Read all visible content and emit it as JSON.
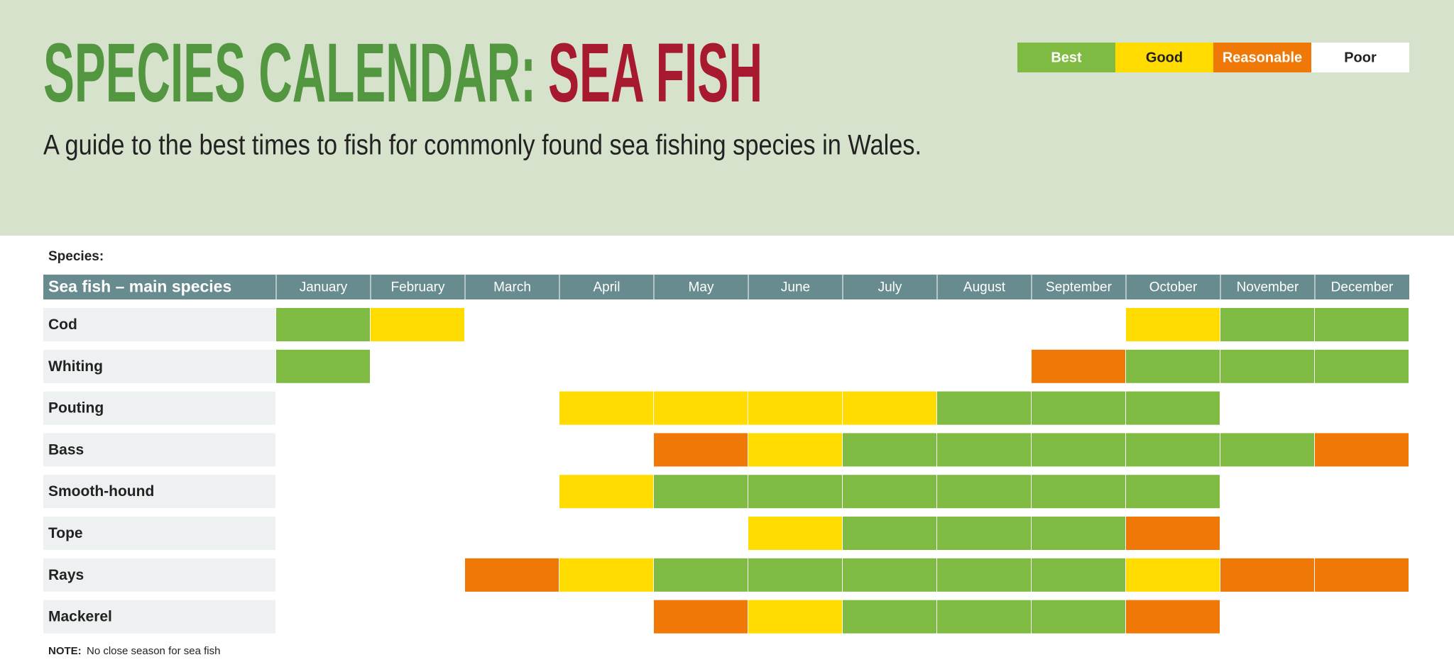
{
  "header": {
    "title_main": "SPECIES CALENDAR:",
    "title_accent": "SEA FISH",
    "subtitle": "A guide to the best times to fish for commonly found sea fishing species in Wales."
  },
  "legend": [
    {
      "label": "Best",
      "color": "#7fba42",
      "text_color": "#ffffff"
    },
    {
      "label": "Good",
      "color": "#ffdb00",
      "text_color": "#222222"
    },
    {
      "label": "Reasonable",
      "color": "#ef7806",
      "text_color": "#ffffff"
    },
    {
      "label": "Poor",
      "color": "#ffffff",
      "text_color": "#222222"
    }
  ],
  "table": {
    "caption": "Species:",
    "corner": "Sea fish – main species",
    "months": [
      "January",
      "February",
      "March",
      "April",
      "May",
      "June",
      "July",
      "August",
      "September",
      "October",
      "November",
      "December"
    ],
    "rows": [
      {
        "species": "Cod",
        "ratings": [
          "Best",
          "Good",
          "Poor",
          "Poor",
          "Poor",
          "Poor",
          "Poor",
          "Poor",
          "Poor",
          "Good",
          "Best",
          "Best"
        ]
      },
      {
        "species": "Whiting",
        "ratings": [
          "Best",
          "Poor",
          "Poor",
          "Poor",
          "Poor",
          "Poor",
          "Poor",
          "Poor",
          "Reasonable",
          "Best",
          "Best",
          "Best"
        ]
      },
      {
        "species": "Pouting",
        "ratings": [
          "Poor",
          "Poor",
          "Poor",
          "Good",
          "Good",
          "Good",
          "Good",
          "Best",
          "Best",
          "Best",
          "Poor",
          "Poor"
        ]
      },
      {
        "species": "Bass",
        "ratings": [
          "Poor",
          "Poor",
          "Poor",
          "Poor",
          "Reasonable",
          "Good",
          "Best",
          "Best",
          "Best",
          "Best",
          "Best",
          "Reasonable"
        ]
      },
      {
        "species": "Smooth-hound",
        "ratings": [
          "Poor",
          "Poor",
          "Poor",
          "Good",
          "Best",
          "Best",
          "Best",
          "Best",
          "Best",
          "Best",
          "Poor",
          "Poor"
        ]
      },
      {
        "species": "Tope",
        "ratings": [
          "Poor",
          "Poor",
          "Poor",
          "Poor",
          "Poor",
          "Good",
          "Best",
          "Best",
          "Best",
          "Reasonable",
          "Poor",
          "Poor"
        ]
      },
      {
        "species": "Rays",
        "ratings": [
          "Poor",
          "Poor",
          "Reasonable",
          "Good",
          "Best",
          "Best",
          "Best",
          "Best",
          "Best",
          "Good",
          "Reasonable",
          "Reasonable"
        ]
      },
      {
        "species": "Mackerel",
        "ratings": [
          "Poor",
          "Poor",
          "Poor",
          "Poor",
          "Reasonable",
          "Good",
          "Best",
          "Best",
          "Best",
          "Reasonable",
          "Poor",
          "Poor"
        ]
      }
    ]
  },
  "note": {
    "label": "NOTE:",
    "text": "No close season for sea fish"
  }
}
